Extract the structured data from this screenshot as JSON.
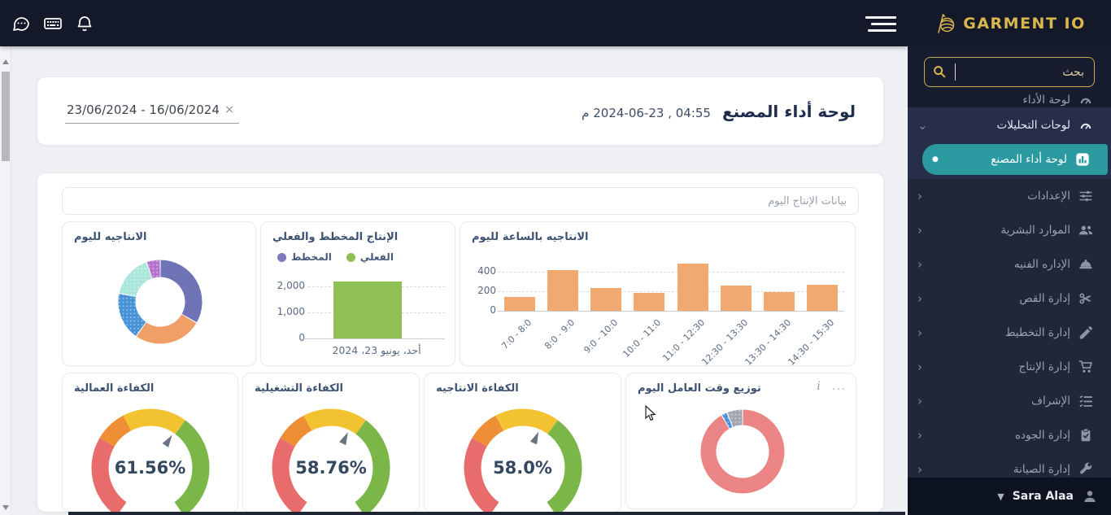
{
  "brand": {
    "name": "GARMENT IO"
  },
  "topbar": {
    "icons": [
      {
        "name": "chat-icon"
      },
      {
        "name": "keyboard-icon"
      },
      {
        "name": "notifications-bell-icon"
      }
    ]
  },
  "sidebar": {
    "search": {
      "placeholder": "بحث"
    },
    "items": [
      {
        "name": "performance-dashboard",
        "label": "لوحة الأداء",
        "icon": "gauge-icon"
      },
      {
        "name": "analytics-dashboards",
        "label": "لوحات التحليلات",
        "icon": "gauge-icon",
        "state": "expanded",
        "chevron": "down"
      },
      {
        "name": "factory-performance-dashboard",
        "label": "لوحة أداء المصنع",
        "icon": "bar-chart-icon",
        "active": true,
        "bullet": true
      },
      {
        "name": "settings",
        "label": "الإعدادات",
        "icon": "sliders-icon",
        "chevron": "left"
      },
      {
        "name": "human-resources",
        "label": "الموارد البشرية",
        "icon": "users-icon",
        "chevron": "left"
      },
      {
        "name": "technical-management",
        "label": "الإداره الفنيه",
        "icon": "hard-hat-icon",
        "chevron": "left"
      },
      {
        "name": "cutting-management",
        "label": "إدارة القص",
        "icon": "scissors-icon",
        "chevron": "left"
      },
      {
        "name": "planning-management",
        "label": "إدارة التخطيط",
        "icon": "planning-icon",
        "chevron": "left"
      },
      {
        "name": "production-management",
        "label": "إدارة الإنتاج",
        "icon": "cart-icon",
        "chevron": "left"
      },
      {
        "name": "supervision",
        "label": "الإشراف",
        "icon": "checklist-icon",
        "chevron": "left"
      },
      {
        "name": "quality-management",
        "label": "إدارة الجوده",
        "icon": "clipboard-check-icon",
        "chevron": "left"
      },
      {
        "name": "maintenance-management",
        "label": "إدارة الصيانة",
        "icon": "wrench-icon",
        "chevron": "left"
      }
    ],
    "user": {
      "name": "Sara Alaa",
      "icon": "person-icon"
    }
  },
  "title_card": {
    "title": "لوحة أداء المصنع",
    "datetime": "04:55 , 2024-06-23 م",
    "date_range": {
      "value": "23/06/2024 - 16/06/2024",
      "clear_label": "×"
    }
  },
  "panel": {
    "tab": "بيانات الإنتاج اليوم"
  },
  "chart_data": [
    {
      "id": "daily-productivity",
      "type": "pie",
      "title": "الانتاجيه لليوم",
      "inner_radius_ratio": 0.58,
      "slices": [
        {
          "value": 33.3,
          "color": "#6f74b7"
        },
        {
          "value": 26.4,
          "color": "#f0a066"
        },
        {
          "value": 18.6,
          "color": "#4793d8",
          "pattern": true
        },
        {
          "value": 16.4,
          "color": "#a9e6db",
          "pattern": true
        },
        {
          "value": 5.3,
          "color": "#b273cc",
          "pattern": true
        }
      ]
    },
    {
      "id": "planned-vs-actual",
      "type": "bar",
      "title": "الإنتاج المخطط والفعلي",
      "grid": "dashed",
      "yticks": [
        0,
        1000,
        2000
      ],
      "ylim": [
        0,
        2300
      ],
      "categories": [
        "أحد، يونيو 23، 2024"
      ],
      "legend": [
        {
          "label": "المخطط",
          "color": "#7e78bc"
        },
        {
          "label": "الفعلي",
          "color": "#90c054"
        }
      ],
      "series": [
        {
          "name": "المخطط",
          "values": [
            0
          ]
        },
        {
          "name": "الفعلي",
          "values": [
            2200
          ]
        }
      ]
    },
    {
      "id": "hourly-productivity",
      "type": "bar",
      "title": "الانتاجيه بالساعة لليوم",
      "grid": "dashed",
      "yticks": [
        0,
        200,
        400
      ],
      "ylim": [
        0,
        500
      ],
      "bar_color": "#f2a96f",
      "xlabel_rotation": -45,
      "categories": [
        "7:0 - 8:0",
        "8:0 - 9:0",
        "9:0 - 10:0",
        "10:0 - 11:0",
        "11:0 - 12:30",
        "12:30 - 13:30",
        "13:30 - 14:30",
        "14:30 - 15:30"
      ],
      "values": [
        140,
        420,
        230,
        185,
        480,
        255,
        190,
        265
      ]
    },
    {
      "id": "labor-efficiency",
      "type": "gauge",
      "title": "الكفاءة العمالية",
      "value": 61.56,
      "display": "61.56%",
      "start_angle": 215,
      "sweep": 290,
      "bands": [
        {
          "to": 29.5,
          "color": "#e96c6c"
        },
        {
          "to": 40.5,
          "color": "#ee8f35"
        },
        {
          "to": 62.5,
          "color": "#f2c230"
        },
        {
          "to": 100,
          "color": "#7ab648"
        }
      ]
    },
    {
      "id": "operational-efficiency",
      "type": "gauge",
      "title": "الكفاءة التشغيلية",
      "value": 58.76,
      "display": "58.76%",
      "start_angle": 215,
      "sweep": 290,
      "bands": [
        {
          "to": 29.5,
          "color": "#e96c6c"
        },
        {
          "to": 40.5,
          "color": "#ee8f35"
        },
        {
          "to": 62.5,
          "color": "#f2c230"
        },
        {
          "to": 100,
          "color": "#7ab648"
        }
      ]
    },
    {
      "id": "production-efficiency",
      "type": "gauge",
      "title": "الكفاءة الانتاجيه",
      "value": 58.0,
      "display": "58.0%",
      "start_angle": 215,
      "sweep": 290,
      "bands": [
        {
          "to": 29.5,
          "color": "#e96c6c"
        },
        {
          "to": 40.5,
          "color": "#ee8f35"
        },
        {
          "to": 62.5,
          "color": "#f2c230"
        },
        {
          "to": 100,
          "color": "#7ab648"
        }
      ]
    },
    {
      "id": "worker-time-distribution",
      "type": "pie",
      "title": "توزيع وقت العامل اليوم",
      "inner_radius_ratio": 0.62,
      "toolbar": [
        "info-icon",
        "more-options-icon"
      ],
      "slices": [
        {
          "value": 91.7,
          "color": "#eb8585"
        },
        {
          "value": 2.2,
          "color": "#4793d8",
          "pattern": true
        },
        {
          "value": 6.1,
          "color": "#a2a7b3",
          "pattern": true
        }
      ]
    }
  ]
}
